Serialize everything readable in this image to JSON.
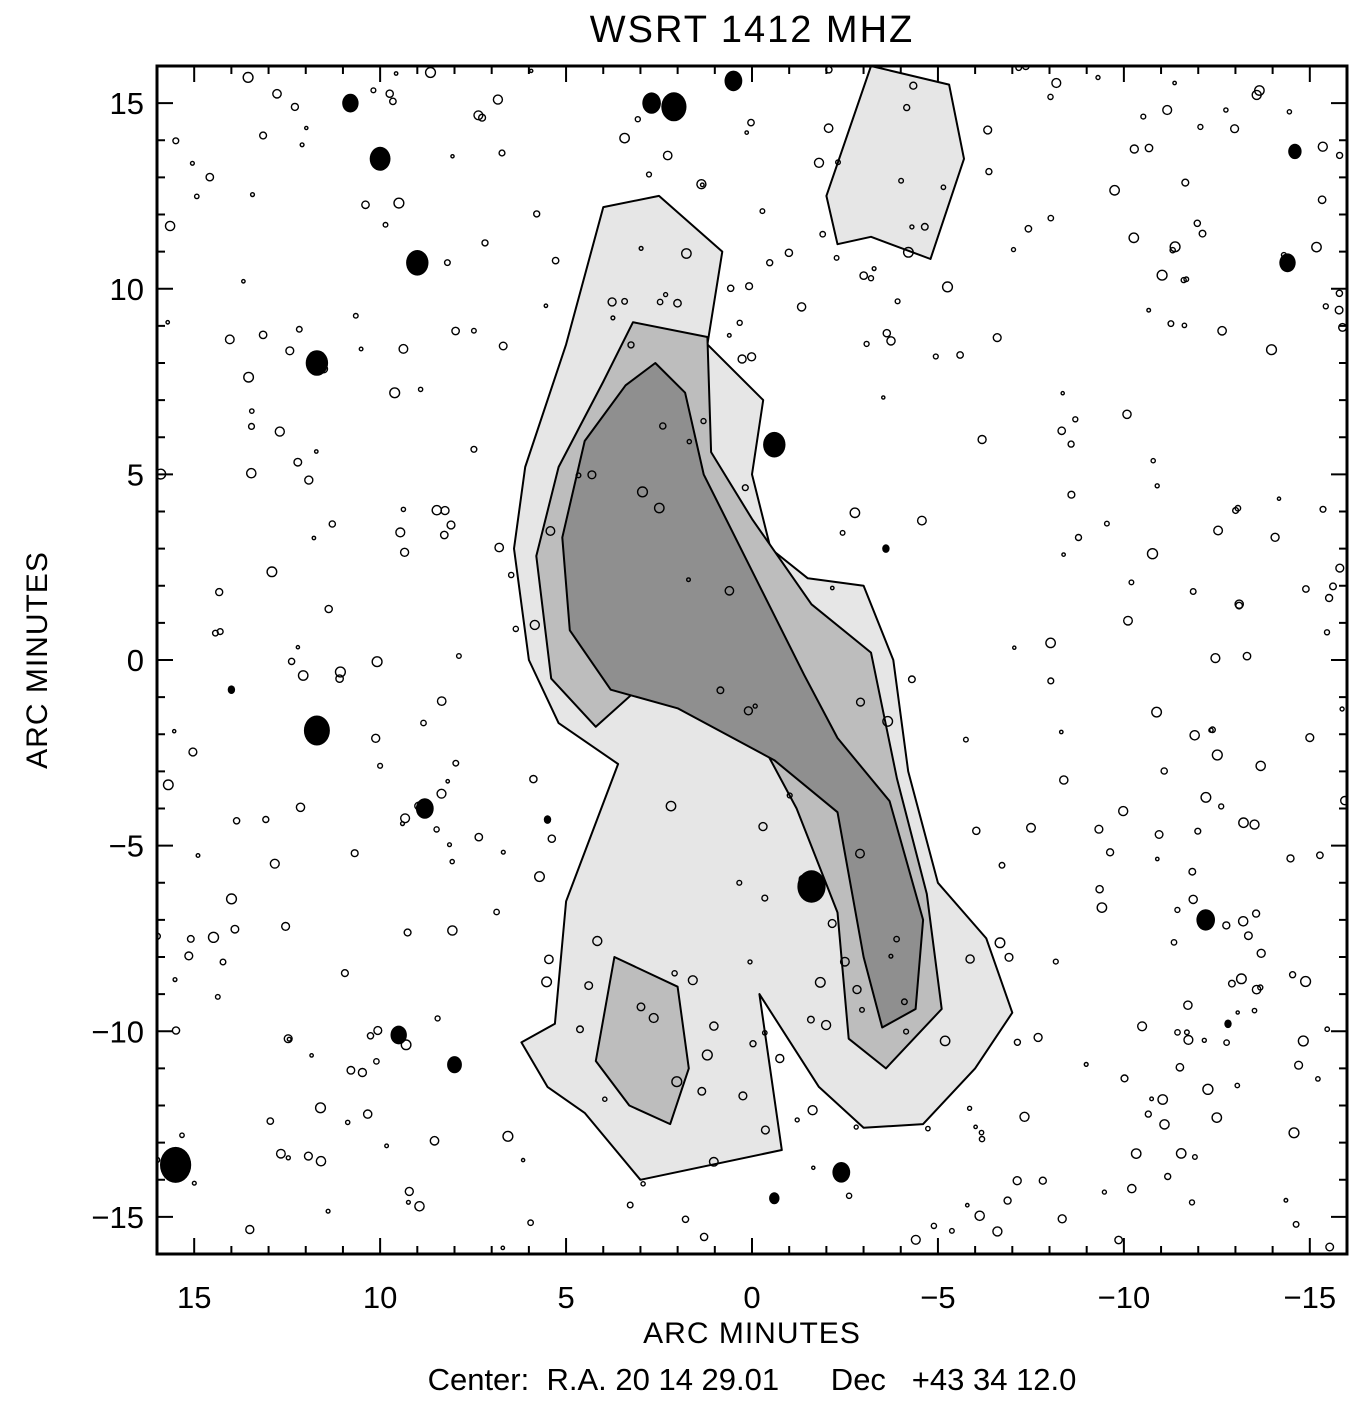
{
  "chart_data": {
    "type": "heatmap",
    "title": "WSRT 1412 MHZ",
    "xlabel": "ARC MINUTES",
    "ylabel": "ARC MINUTES",
    "caption": "Center:  R.A. 20 14 29.01      Dec   +43 34 12.0",
    "xlim": [
      16,
      -16
    ],
    "ylim": [
      -16,
      16
    ],
    "x_ticks": [
      15,
      10,
      5,
      0,
      -5,
      -10,
      -15
    ],
    "x_tick_labels": [
      "15",
      "10",
      "5",
      "0",
      "−5",
      "−10",
      "−15"
    ],
    "y_ticks": [
      15,
      10,
      5,
      0,
      -5,
      -10,
      -15
    ],
    "y_tick_labels": [
      "15",
      "10",
      "5",
      "0",
      "−5",
      "−10",
      "−15"
    ],
    "grid": false,
    "colors": {
      "frame": "#000000",
      "emission_light": "#e6e6e6",
      "emission_mid": "#bdbdbd",
      "emission_dark": "#8f8f8f",
      "source": "#000000"
    },
    "emission_regions": [
      {
        "level": 1,
        "points": [
          [
            4,
            12.2
          ],
          [
            2.5,
            12.5
          ],
          [
            0.8,
            11
          ],
          [
            1.2,
            8.5
          ],
          [
            -0.3,
            7
          ],
          [
            0,
            5
          ],
          [
            -0.5,
            3
          ],
          [
            -1.5,
            2.2
          ],
          [
            -3,
            2
          ],
          [
            -3.8,
            0
          ],
          [
            -4.2,
            -3
          ],
          [
            -5,
            -6
          ],
          [
            -6.3,
            -7.5
          ],
          [
            -7,
            -9.5
          ],
          [
            -6,
            -11
          ],
          [
            -4.6,
            -12.5
          ],
          [
            -3,
            -12.6
          ],
          [
            -1.8,
            -11.5
          ],
          [
            -0.2,
            -9
          ],
          [
            -0.8,
            -13.2
          ],
          [
            3,
            -14
          ],
          [
            4.5,
            -12.2
          ],
          [
            5.5,
            -11.5
          ],
          [
            6.2,
            -10.3
          ],
          [
            5.3,
            -9.8
          ],
          [
            5,
            -6.5
          ],
          [
            3.6,
            -2.8
          ],
          [
            5.2,
            -1.7
          ],
          [
            6,
            0
          ],
          [
            6.4,
            3
          ],
          [
            6.1,
            5.2
          ],
          [
            5,
            8.5
          ]
        ]
      },
      {
        "level": 1,
        "points": [
          [
            -2,
            12.5
          ],
          [
            -3.2,
            16
          ],
          [
            -5.3,
            15.5
          ],
          [
            -5.7,
            13.5
          ],
          [
            -4.8,
            10.8
          ],
          [
            -3.2,
            11.4
          ],
          [
            -2.3,
            11.2
          ]
        ]
      },
      {
        "level": 2,
        "points": [
          [
            3.2,
            9.1
          ],
          [
            1.2,
            8.7
          ],
          [
            1.1,
            5.6
          ],
          [
            0,
            3.8
          ],
          [
            -1.6,
            1.5
          ],
          [
            -3.2,
            0.2
          ],
          [
            -3.9,
            -3.2
          ],
          [
            -4.7,
            -6.3
          ],
          [
            -5.1,
            -9.4
          ],
          [
            -3.6,
            -11
          ],
          [
            -2.6,
            -10.2
          ],
          [
            -2.3,
            -6.8
          ],
          [
            -1.2,
            -4
          ],
          [
            0.3,
            -1.2
          ],
          [
            2.2,
            0
          ],
          [
            4.2,
            -1.8
          ],
          [
            5.4,
            -0.5
          ],
          [
            5.8,
            2.8
          ],
          [
            5.2,
            5.2
          ],
          [
            4,
            7.5
          ]
        ]
      },
      {
        "level": 2,
        "points": [
          [
            3.7,
            -8
          ],
          [
            2,
            -8.8
          ],
          [
            1.7,
            -11
          ],
          [
            2.2,
            -12.5
          ],
          [
            3.3,
            -12
          ],
          [
            4.2,
            -10.8
          ]
        ]
      },
      {
        "level": 3,
        "points": [
          [
            2.6,
            8
          ],
          [
            1.8,
            7.2
          ],
          [
            1.3,
            5
          ],
          [
            -0.3,
            1.8
          ],
          [
            -1.4,
            -0.4
          ],
          [
            -2.3,
            -2.1
          ],
          [
            -3.7,
            -3.8
          ],
          [
            -4.6,
            -7
          ],
          [
            -4.4,
            -9.4
          ],
          [
            -3.5,
            -9.9
          ],
          [
            -3,
            -8
          ],
          [
            -2.3,
            -4.1
          ],
          [
            -0.6,
            -2.7
          ],
          [
            2,
            -1.3
          ],
          [
            3.8,
            -0.8
          ],
          [
            4.9,
            0.8
          ],
          [
            5.1,
            3.3
          ],
          [
            4.5,
            5.9
          ],
          [
            3.4,
            7.4
          ]
        ]
      }
    ],
    "point_sources": [
      {
        "x": 10.8,
        "y": 15.0,
        "r": 0.22
      },
      {
        "x": 10,
        "y": 13.5,
        "r": 0.28
      },
      {
        "x": 9,
        "y": 10.7,
        "r": 0.3
      },
      {
        "x": 11.7,
        "y": 8,
        "r": 0.3
      },
      {
        "x": 11.7,
        "y": -1.9,
        "r": 0.35
      },
      {
        "x": 8.8,
        "y": -4,
        "r": 0.24
      },
      {
        "x": 9.5,
        "y": -10.1,
        "r": 0.22
      },
      {
        "x": 8,
        "y": -10.9,
        "r": 0.2
      },
      {
        "x": 15.5,
        "y": -13.6,
        "r": 0.42
      },
      {
        "x": 2.7,
        "y": 15.0,
        "r": 0.25
      },
      {
        "x": 2.1,
        "y": 14.9,
        "r": 0.34
      },
      {
        "x": 0.5,
        "y": 15.6,
        "r": 0.24
      },
      {
        "x": -0.6,
        "y": 5.8,
        "r": 0.3
      },
      {
        "x": -1.6,
        "y": -6.1,
        "r": 0.38
      },
      {
        "x": -2.4,
        "y": -13.8,
        "r": 0.24
      },
      {
        "x": -0.6,
        "y": -14.5,
        "r": 0.14
      },
      {
        "x": -12.2,
        "y": -7.0,
        "r": 0.25
      },
      {
        "x": -14.4,
        "y": 10.7,
        "r": 0.22
      },
      {
        "x": -14.6,
        "y": 13.7,
        "r": 0.18
      },
      {
        "x": 5.5,
        "y": -4.3,
        "r": 0.1
      },
      {
        "x": 14,
        "y": -0.8,
        "r": 0.1
      },
      {
        "x": -3.6,
        "y": 3.0,
        "r": 0.1
      },
      {
        "x": -12.8,
        "y": -9.8,
        "r": 0.1
      }
    ]
  }
}
